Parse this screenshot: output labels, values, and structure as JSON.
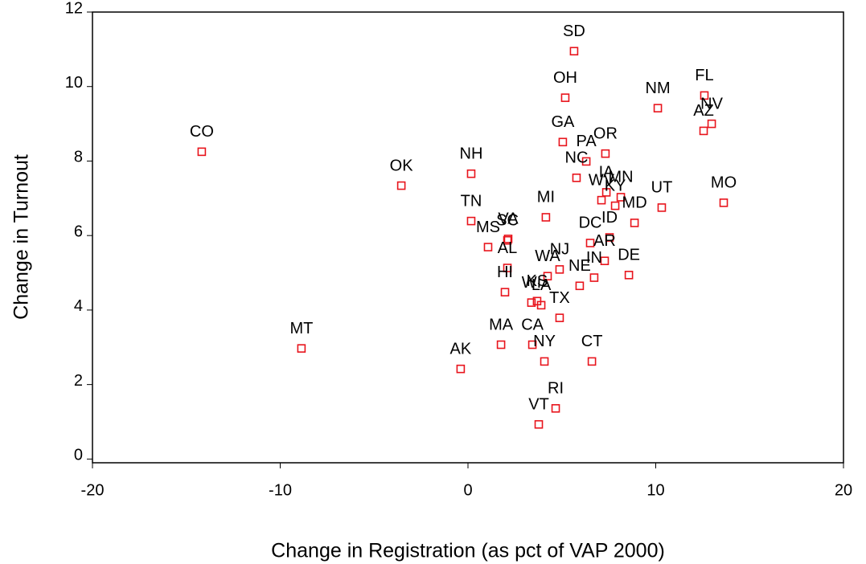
{
  "chart_data": {
    "type": "scatter",
    "x_label": "Change in Registration (as pct of VAP 2000)",
    "y_label": "Change in Turnout",
    "labels": [
      "CO",
      "MT",
      "OK",
      "AK",
      "NH",
      "TN",
      "MS",
      "VA",
      "SC",
      "AL",
      "HI",
      "MA",
      "MI",
      "GA",
      "OH",
      "SD",
      "PA",
      "NC",
      "OR",
      "WV",
      "MN",
      "IA",
      "KY",
      "MD",
      "UT",
      "MO",
      "NM",
      "FL",
      "NV",
      "AZ",
      "DC",
      "ID",
      "AR",
      "IN",
      "NE",
      "DE",
      "NJ",
      "WA",
      "TX",
      "WI",
      "KS",
      "LA",
      "CA",
      "NY",
      "CT",
      "RI",
      "VT"
    ],
    "x": [
      -14.18,
      -8.87,
      -3.55,
      -0.39,
      0.17,
      0.17,
      1.07,
      2.14,
      2.1,
      2.1,
      1.97,
      1.76,
      4.15,
      5.05,
      5.18,
      5.65,
      6.3,
      5.78,
      7.32,
      7.11,
      8.14,
      7.37,
      7.84,
      8.87,
      10.32,
      13.62,
      10.11,
      12.59,
      12.98,
      12.55,
      6.51,
      7.54,
      7.28,
      6.72,
      5.95,
      8.57,
      4.88,
      4.24,
      4.88,
      3.38,
      3.68,
      3.9,
      3.43,
      4.07,
      6.6,
      4.67,
      3.77
    ],
    "values": [
      8.25,
      2.97,
      7.34,
      2.42,
      7.66,
      6.39,
      5.69,
      5.91,
      5.87,
      5.13,
      4.48,
      3.07,
      6.49,
      8.51,
      9.7,
      10.95,
      7.99,
      7.55,
      8.2,
      6.95,
      7.03,
      7.16,
      6.8,
      6.34,
      6.75,
      6.88,
      9.42,
      9.76,
      9.0,
      8.81,
      5.8,
      5.95,
      5.32,
      4.87,
      4.65,
      4.94,
      5.09,
      4.91,
      3.79,
      4.2,
      4.24,
      4.13,
      3.07,
      2.62,
      2.62,
      1.36,
      0.93
    ],
    "color": "#e8141c",
    "xlim": [
      -20,
      20
    ],
    "xticks": [
      -20,
      -10,
      0,
      10,
      20
    ],
    "ylim": [
      -0.1,
      12
    ],
    "yticks": [
      0,
      2,
      4,
      6,
      8,
      10,
      12
    ]
  }
}
